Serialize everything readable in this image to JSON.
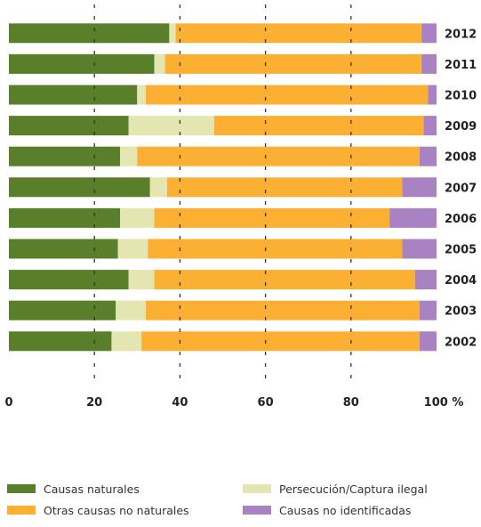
{
  "chart_data": {
    "type": "bar",
    "orientation": "horizontal",
    "stacked": true,
    "categories": [
      "2012",
      "2011",
      "2010",
      "2009",
      "2008",
      "2007",
      "2006",
      "2005",
      "2004",
      "2003",
      "2002"
    ],
    "series": [
      {
        "name": "Causas naturales",
        "color": "#5a7f2b",
        "values": [
          37.5,
          34,
          30,
          28,
          26,
          33,
          26,
          25.5,
          28,
          25,
          24
        ]
      },
      {
        "name": "Persecución/Captura ilegal",
        "color": "#e3e6b0",
        "values": [
          1.5,
          2.5,
          2,
          20,
          4,
          4,
          8,
          7,
          6,
          7,
          7
        ]
      },
      {
        "name": "Otras causas no naturales",
        "color": "#fbb034",
        "values": [
          57.5,
          60,
          66,
          49,
          66,
          55,
          55,
          59.5,
          61,
          64,
          65
        ]
      },
      {
        "name": "Causas no identificadas",
        "color": "#a982c4",
        "values": [
          3.5,
          3.5,
          2,
          3,
          4,
          8,
          11,
          8,
          5,
          4,
          4
        ]
      }
    ],
    "xlim": [
      0,
      100
    ],
    "x_ticks": [
      "0",
      "20",
      "40",
      "60",
      "80",
      "100 %"
    ],
    "grid": true,
    "legend_placement": "bottom"
  }
}
